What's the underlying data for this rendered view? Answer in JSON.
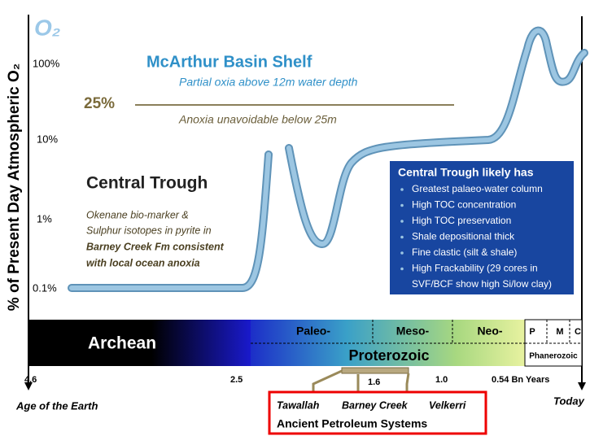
{
  "symbol": "O₂",
  "y_axis": {
    "label": "% of Present Day Atmospheric O₂",
    "ticks": [
      "100%",
      "10%",
      "1%",
      "0.1%"
    ]
  },
  "shelf": {
    "title": "McArthur Basin Shelf",
    "subtitle": "Partial oxia above 12m water depth",
    "depth_label": "25%",
    "depth_note": "Anoxia unavoidable below 25m"
  },
  "trough": {
    "title": "Central Trough",
    "lines": [
      "Okenane bio-marker &",
      "Sulphur isotopes in pyrite in",
      "Barney Creek Fm consistent",
      "with local ocean anoxia"
    ]
  },
  "box": {
    "title": "Central Trough likely has",
    "items": [
      "Greatest palaeo-water column",
      "High TOC concentration",
      "High TOC preservation",
      "Shale depositional thick",
      "Fine clastic (silt & shale)",
      "High Frackability (29 cores in",
      "SVF/BCF show high Si/low clay)"
    ]
  },
  "timeline": {
    "eons": [
      "Archean",
      "Proterozoic",
      "Phanerozoic"
    ],
    "eras": [
      "Paleo-",
      "Meso-",
      "Neo-",
      "P",
      "M",
      "C"
    ],
    "ages": [
      "4.6",
      "2.5",
      "1.6",
      "1.0",
      "0.54 Bn Years"
    ],
    "start": "Age of the Earth",
    "end": "Today"
  },
  "petroleum": {
    "systems": [
      "Tawallah",
      "Barney Creek",
      "Velkerri"
    ],
    "title": "Ancient Petroleum Systems"
  }
}
